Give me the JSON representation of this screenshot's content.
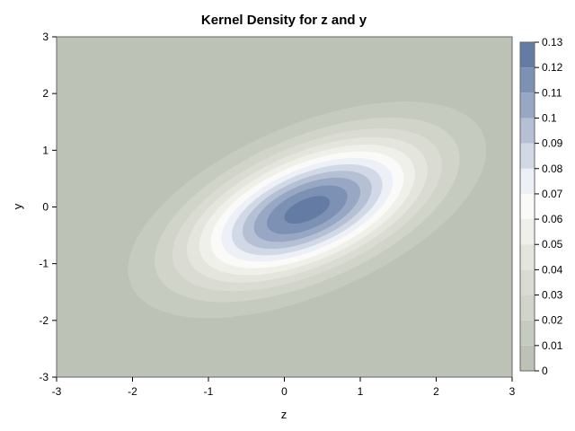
{
  "chart_data": {
    "type": "heatmap",
    "subtype": "contour",
    "title": "Kernel Density for z and y",
    "xlabel": "z",
    "ylabel": "y",
    "xlim": [
      -3,
      3
    ],
    "ylim": [
      -3,
      3
    ],
    "xticks": [
      "-3",
      "-2",
      "-1",
      "0",
      "1",
      "2",
      "3"
    ],
    "yticks": [
      "-3",
      "-2",
      "-1",
      "0",
      "1",
      "2",
      "3"
    ],
    "grid": false,
    "legend_position": "right",
    "colorbar": {
      "min": 0,
      "max": 0.13,
      "ticks": [
        "0",
        "0.01",
        "0.02",
        "0.03",
        "0.04",
        "0.05",
        "0.06",
        "0.07",
        "0.08",
        "0.09",
        "0.1",
        "0.11",
        "0.12",
        "0.13"
      ]
    },
    "levels": [
      0,
      0.01,
      0.02,
      0.03,
      0.04,
      0.05,
      0.06,
      0.07,
      0.08,
      0.09,
      0.1,
      0.11,
      0.12,
      0.13
    ],
    "level_colors": [
      "#bcc2b5",
      "#c6cbbf",
      "#d0d4c9",
      "#dadcd3",
      "#e4e6de",
      "#eff0ea",
      "#fafaf8",
      "#edf0f7",
      "#d2d9e6",
      "#b5c0d5",
      "#98a8c4",
      "#7c91b3",
      "#647ca3"
    ],
    "density_model": {
      "peak_density": 0.125,
      "center": {
        "z": 0.3,
        "y": -0.05
      },
      "sd_z": 1.05,
      "sd_y": 0.85,
      "correlation": 0.55
    }
  }
}
